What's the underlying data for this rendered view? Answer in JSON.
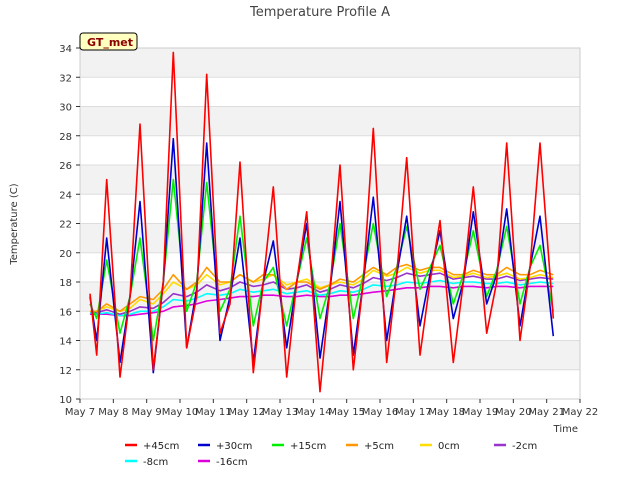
{
  "chart_data": {
    "type": "line",
    "title": "Temperature Profile A",
    "xlabel": "Time",
    "ylabel": "Temperature (C)",
    "site_tag": "GT_met",
    "x_ticks": [
      "May 7",
      "May 8",
      "May 9",
      "May 10",
      "May 11",
      "May 12",
      "May 13",
      "May 14",
      "May 15",
      "May 16",
      "May 17",
      "May 18",
      "May 19",
      "May 20",
      "May 21",
      "May 22"
    ],
    "xlim": [
      0,
      15
    ],
    "ylim": [
      10,
      34
    ],
    "y_ticks": [
      10,
      12,
      14,
      16,
      18,
      20,
      22,
      24,
      26,
      28,
      30,
      32,
      34
    ],
    "grid": "horizontal bands",
    "legend_position": "bottom",
    "x": [
      0.3,
      0.5,
      0.8,
      1.2,
      1.5,
      1.8,
      2.2,
      2.5,
      2.8,
      3.2,
      3.5,
      3.8,
      4.2,
      4.5,
      4.8,
      5.2,
      5.5,
      5.8,
      6.2,
      6.5,
      6.8,
      7.2,
      7.5,
      7.8,
      8.2,
      8.5,
      8.8,
      9.2,
      9.5,
      9.8,
      10.2,
      10.5,
      10.8,
      11.2,
      11.5,
      11.8,
      12.2,
      12.5,
      12.8,
      13.2,
      13.5,
      13.8,
      14.2
    ],
    "series": [
      {
        "name": "+45cm",
        "color": "#ff0000",
        "values": [
          17.2,
          13.0,
          25.0,
          11.5,
          17.0,
          28.8,
          12.0,
          18.0,
          33.7,
          13.5,
          17.0,
          32.2,
          14.5,
          16.5,
          26.2,
          11.8,
          18.0,
          24.5,
          11.5,
          18.0,
          22.8,
          10.5,
          17.5,
          26.0,
          12.0,
          18.0,
          28.5,
          12.5,
          18.5,
          26.5,
          13.0,
          18.0,
          22.2,
          12.5,
          18.0,
          24.5,
          14.5,
          18.0,
          27.5,
          14.0,
          19.0,
          27.5,
          15.5
        ]
      },
      {
        "name": "+30cm",
        "color": "#0000cc",
        "values": [
          17.0,
          14.0,
          21.0,
          12.5,
          17.0,
          23.5,
          11.8,
          18.0,
          27.8,
          13.5,
          17.5,
          27.5,
          14.0,
          17.0,
          21.0,
          12.5,
          18.0,
          20.8,
          13.5,
          18.0,
          22.0,
          12.8,
          17.5,
          23.5,
          13.0,
          18.0,
          23.8,
          14.0,
          18.5,
          22.5,
          15.0,
          18.5,
          21.5,
          15.5,
          18.0,
          22.8,
          16.5,
          18.5,
          23.0,
          15.0,
          19.0,
          22.5,
          14.3
        ]
      },
      {
        "name": "+15cm",
        "color": "#00ee00",
        "values": [
          16.5,
          15.5,
          19.5,
          14.5,
          17.0,
          21.0,
          14.0,
          18.0,
          25.0,
          16.0,
          18.0,
          24.8,
          16.0,
          17.5,
          22.5,
          15.0,
          18.0,
          19.0,
          15.0,
          18.0,
          21.0,
          15.5,
          17.8,
          22.0,
          15.5,
          18.5,
          22.0,
          17.0,
          19.0,
          21.8,
          17.5,
          19.0,
          20.5,
          16.5,
          18.5,
          21.5,
          17.0,
          18.8,
          21.8,
          16.5,
          19.0,
          20.5,
          16.0
        ]
      },
      {
        "name": "+5cm",
        "color": "#ff9900",
        "values": [
          16.0,
          16.0,
          16.5,
          16.0,
          16.5,
          17.0,
          16.8,
          17.5,
          18.5,
          17.5,
          18.0,
          19.0,
          18.0,
          18.0,
          18.5,
          18.0,
          18.5,
          18.5,
          17.5,
          18.0,
          18.0,
          17.5,
          17.8,
          18.2,
          18.0,
          18.5,
          19.0,
          18.5,
          19.0,
          19.2,
          18.8,
          19.0,
          19.0,
          18.5,
          18.5,
          18.8,
          18.5,
          18.5,
          19.0,
          18.5,
          18.5,
          18.8,
          18.5
        ]
      },
      {
        "name": "0cm",
        "color": "#ffdd00",
        "values": [
          16.0,
          16.0,
          16.3,
          16.0,
          16.2,
          16.8,
          16.5,
          17.2,
          18.0,
          17.5,
          17.8,
          18.5,
          17.8,
          18.0,
          18.5,
          18.0,
          18.2,
          18.5,
          17.8,
          18.0,
          18.2,
          17.6,
          17.8,
          18.0,
          17.8,
          18.2,
          18.8,
          18.4,
          18.6,
          19.0,
          18.6,
          18.8,
          18.8,
          18.3,
          18.4,
          18.6,
          18.3,
          18.4,
          18.6,
          18.2,
          18.3,
          18.5,
          18.3
        ]
      },
      {
        "name": "-2cm",
        "color": "#9933cc",
        "values": [
          16.0,
          15.9,
          16.1,
          15.8,
          16.0,
          16.3,
          16.2,
          16.6,
          17.2,
          17.0,
          17.3,
          17.8,
          17.4,
          17.6,
          18.0,
          17.7,
          17.8,
          18.0,
          17.5,
          17.6,
          17.8,
          17.3,
          17.5,
          17.8,
          17.6,
          17.9,
          18.3,
          18.1,
          18.3,
          18.6,
          18.4,
          18.5,
          18.6,
          18.2,
          18.3,
          18.4,
          18.2,
          18.2,
          18.4,
          18.1,
          18.2,
          18.3,
          18.2
        ]
      },
      {
        "name": "-8cm",
        "color": "#00ffff",
        "values": [
          15.9,
          15.8,
          15.9,
          15.7,
          15.8,
          16.0,
          16.0,
          16.3,
          16.8,
          16.7,
          16.9,
          17.2,
          17.1,
          17.2,
          17.5,
          17.3,
          17.4,
          17.5,
          17.2,
          17.3,
          17.4,
          17.1,
          17.2,
          17.4,
          17.3,
          17.5,
          17.8,
          17.7,
          17.8,
          18.0,
          17.9,
          18.0,
          18.1,
          17.9,
          18.0,
          18.0,
          17.9,
          17.9,
          18.0,
          17.8,
          17.9,
          18.0,
          17.9
        ]
      },
      {
        "name": "-16cm",
        "color": "#dd00dd",
        "values": [
          15.8,
          15.8,
          15.8,
          15.7,
          15.7,
          15.8,
          15.9,
          16.0,
          16.3,
          16.4,
          16.5,
          16.7,
          16.8,
          16.9,
          17.0,
          17.0,
          17.1,
          17.1,
          17.0,
          17.0,
          17.1,
          17.0,
          17.0,
          17.1,
          17.1,
          17.2,
          17.3,
          17.4,
          17.5,
          17.6,
          17.6,
          17.7,
          17.7,
          17.6,
          17.7,
          17.7,
          17.6,
          17.7,
          17.7,
          17.6,
          17.7,
          17.7,
          17.7
        ]
      }
    ]
  }
}
